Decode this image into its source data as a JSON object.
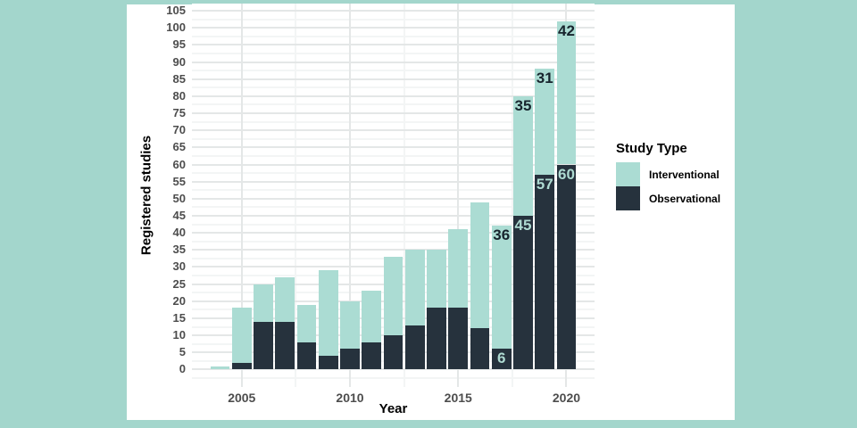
{
  "figure": {
    "background_color": "#a3d6cc",
    "plot_background_color": "#ffffff",
    "grid_major_color": "#e4e7e7",
    "grid_minor_color": "#f3f5f5",
    "tick_label_color": "#4d4d4d"
  },
  "chart_data": {
    "type": "bar",
    "stacked": true,
    "title": "",
    "xlabel": "Year",
    "ylabel": "Registered studies",
    "x": [
      2004,
      2005,
      2006,
      2007,
      2008,
      2009,
      2010,
      2011,
      2012,
      2013,
      2014,
      2015,
      2016,
      2017,
      2018,
      2019,
      2020
    ],
    "series": [
      {
        "name": "Observational",
        "color": "#26323d",
        "label_color": "#aedbd2",
        "values": [
          0,
          2,
          14,
          14,
          8,
          4,
          6,
          8,
          10,
          13,
          18,
          18,
          12,
          6,
          45,
          57,
          60
        ]
      },
      {
        "name": "Interventional",
        "color": "#abdcd3",
        "label_color": "#17242d",
        "values": [
          1,
          16,
          11,
          13,
          11,
          25,
          14,
          15,
          23,
          22,
          17,
          23,
          37,
          36,
          35,
          31,
          42
        ]
      }
    ],
    "stack_order_bottom_to_top": [
      "Observational",
      "Interventional"
    ],
    "totals": [
      1,
      18,
      25,
      27,
      19,
      29,
      20,
      23,
      33,
      35,
      35,
      41,
      49,
      42,
      80,
      88,
      102
    ],
    "segment_labels_years": [
      2017,
      2018,
      2019,
      2020
    ],
    "y_ticks": [
      0,
      5,
      10,
      15,
      20,
      25,
      30,
      35,
      40,
      45,
      50,
      55,
      60,
      65,
      70,
      75,
      80,
      85,
      90,
      95,
      100,
      105
    ],
    "x_ticks": [
      2005,
      2010,
      2015,
      2020
    ],
    "ylim": [
      -5.1,
      107.1
    ],
    "xlim": [
      2002.7,
      2021.3
    ],
    "bar_width_years": 0.9,
    "grid": true,
    "legend": {
      "title": "Study Type",
      "position": "right",
      "items": [
        {
          "label": "Interventional",
          "color": "#abdcd3"
        },
        {
          "label": "Observational",
          "color": "#26323d"
        }
      ]
    }
  }
}
